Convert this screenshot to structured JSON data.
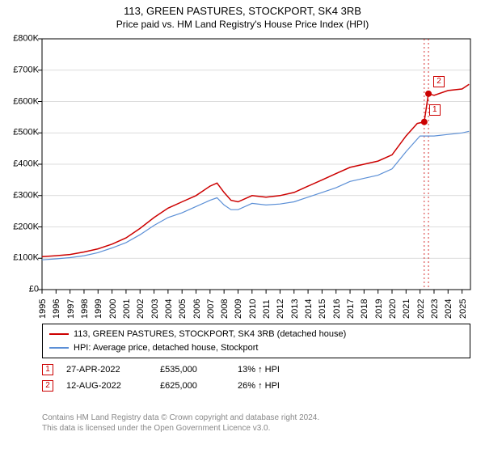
{
  "title": "113, GREEN PASTURES, STOCKPORT, SK4 3RB",
  "subtitle": "Price paid vs. HM Land Registry's House Price Index (HPI)",
  "chart": {
    "type": "line",
    "xlim": [
      1995,
      2025.6
    ],
    "ylim": [
      0,
      800000
    ],
    "x_ticks": [
      1995,
      1996,
      1997,
      1998,
      1999,
      2000,
      2001,
      2002,
      2003,
      2004,
      2005,
      2006,
      2007,
      2008,
      2009,
      2010,
      2011,
      2012,
      2013,
      2014,
      2015,
      2016,
      2017,
      2018,
      2019,
      2020,
      2021,
      2022,
      2023,
      2024,
      2025
    ],
    "y_ticks": [
      0,
      100000,
      200000,
      300000,
      400000,
      500000,
      600000,
      700000,
      800000
    ],
    "y_tick_labels": [
      "£0",
      "£100K",
      "£200K",
      "£300K",
      "£400K",
      "£500K",
      "£600K",
      "£700K",
      "£800K"
    ],
    "grid_color": "#d0d0d0",
    "axis_color": "#000000",
    "background_color": "#ffffff",
    "tick_fontsize": 11,
    "series": [
      {
        "name": "price_paid",
        "label": "113, GREEN PASTURES, STOCKPORT, SK4 3RB (detached house)",
        "color": "#cc0000",
        "line_width": 1.5,
        "x": [
          1995,
          1996,
          1997,
          1998,
          1999,
          2000,
          2001,
          2002,
          2003,
          2004,
          2005,
          2006,
          2007,
          2007.5,
          2008,
          2008.5,
          2009,
          2010,
          2011,
          2012,
          2013,
          2014,
          2015,
          2016,
          2017,
          2018,
          2019,
          2020,
          2021,
          2021.8,
          2022.3,
          2022.6,
          2023,
          2024,
          2025,
          2025.5
        ],
        "y": [
          105000,
          108000,
          112000,
          120000,
          130000,
          145000,
          165000,
          195000,
          230000,
          260000,
          280000,
          300000,
          330000,
          340000,
          310000,
          285000,
          280000,
          300000,
          295000,
          300000,
          310000,
          330000,
          350000,
          370000,
          390000,
          400000,
          410000,
          430000,
          490000,
          530000,
          535000,
          625000,
          620000,
          635000,
          640000,
          655000
        ]
      },
      {
        "name": "hpi",
        "label": "HPI: Average price, detached house, Stockport",
        "color": "#5b8fd6",
        "line_width": 1.2,
        "x": [
          1995,
          1996,
          1997,
          1998,
          1999,
          2000,
          2001,
          2002,
          2003,
          2004,
          2005,
          2006,
          2007,
          2007.5,
          2008,
          2008.5,
          2009,
          2010,
          2011,
          2012,
          2013,
          2014,
          2015,
          2016,
          2017,
          2018,
          2019,
          2020,
          2021,
          2022,
          2023,
          2024,
          2025,
          2025.5
        ],
        "y": [
          95000,
          98000,
          102000,
          108000,
          118000,
          133000,
          150000,
          175000,
          205000,
          230000,
          245000,
          265000,
          285000,
          293000,
          270000,
          255000,
          255000,
          275000,
          270000,
          273000,
          280000,
          295000,
          310000,
          325000,
          345000,
          355000,
          365000,
          385000,
          440000,
          490000,
          490000,
          495000,
          500000,
          505000
        ]
      }
    ],
    "sale_markers": [
      {
        "label": "1",
        "x": 2022.3,
        "y": 535000,
        "dot_color": "#cc0000"
      },
      {
        "label": "2",
        "x": 2022.6,
        "y": 625000,
        "dot_color": "#cc0000"
      }
    ],
    "vlines": [
      {
        "x": 2022.3,
        "color": "#cc0000",
        "dash": "2,3",
        "width": 0.8
      },
      {
        "x": 2022.6,
        "color": "#cc0000",
        "dash": "2,3",
        "width": 0.8
      }
    ]
  },
  "legend": {
    "items": [
      {
        "color": "#cc0000",
        "label": "113, GREEN PASTURES, STOCKPORT, SK4 3RB (detached house)"
      },
      {
        "color": "#5b8fd6",
        "label": "HPI: Average price, detached house, Stockport"
      }
    ]
  },
  "sales": [
    {
      "marker": "1",
      "date": "27-APR-2022",
      "price": "£535,000",
      "delta": "13% ↑ HPI"
    },
    {
      "marker": "2",
      "date": "12-AUG-2022",
      "price": "£625,000",
      "delta": "26% ↑ HPI"
    }
  ],
  "attribution": {
    "line1": "Contains HM Land Registry data © Crown copyright and database right 2024.",
    "line2": "This data is licensed under the Open Government Licence v3.0."
  }
}
